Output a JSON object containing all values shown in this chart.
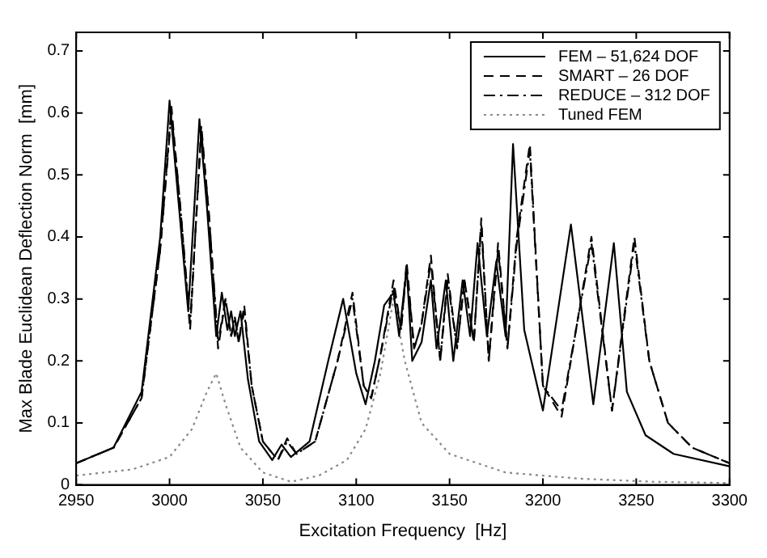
{
  "chart_data": {
    "type": "line",
    "xlabel": "Excitation Frequency  [Hz]",
    "ylabel": "Max Blade Euclidean Deflection Norm  [mm]",
    "xlim": [
      2950,
      3300
    ],
    "xticks": [
      2950,
      3000,
      3050,
      3100,
      3150,
      3200,
      3250,
      3300
    ],
    "ylim": [
      0,
      0.73
    ],
    "yticks": [
      0,
      0.1,
      0.2,
      0.3,
      0.4,
      0.5,
      0.6,
      0.7
    ],
    "grid": false,
    "legend": "top right",
    "marker": "none",
    "series": [
      {
        "name": "FEM – 51,624 DOF",
        "color": "#000000",
        "line_style": "solid",
        "x": [
          2950,
          2970,
          2985,
          2995,
          3000,
          3005,
          3010,
          3016,
          3020,
          3025,
          3028,
          3031,
          3033,
          3035,
          3038,
          3042,
          3048,
          3055,
          3060,
          3065,
          3075,
          3085,
          3093,
          3100,
          3105,
          3110,
          3115,
          3120,
          3123,
          3127,
          3130,
          3135,
          3140,
          3143,
          3148,
          3152,
          3157,
          3161,
          3165,
          3170,
          3175,
          3180,
          3184,
          3190,
          3200,
          3215,
          3227,
          3238,
          3245,
          3255,
          3270,
          3300
        ],
        "values": [
          0.035,
          0.06,
          0.15,
          0.4,
          0.62,
          0.45,
          0.28,
          0.59,
          0.45,
          0.24,
          0.31,
          0.25,
          0.28,
          0.24,
          0.28,
          0.17,
          0.07,
          0.04,
          0.065,
          0.045,
          0.07,
          0.2,
          0.3,
          0.18,
          0.13,
          0.2,
          0.29,
          0.31,
          0.24,
          0.35,
          0.2,
          0.23,
          0.33,
          0.22,
          0.33,
          0.2,
          0.33,
          0.24,
          0.39,
          0.24,
          0.36,
          0.24,
          0.55,
          0.25,
          0.12,
          0.42,
          0.13,
          0.39,
          0.15,
          0.08,
          0.05,
          0.03
        ]
      },
      {
        "name": "SMART – 26 DOF",
        "color": "#000000",
        "line_style": "dashed",
        "x": [
          2950,
          2970,
          2985,
          2995,
          3001,
          3006,
          3011,
          3017,
          3021,
          3026,
          3030,
          3033,
          3035,
          3037,
          3040,
          3044,
          3050,
          3058,
          3063,
          3068,
          3078,
          3090,
          3098,
          3104,
          3108,
          3113,
          3120,
          3124,
          3127,
          3131,
          3135,
          3140,
          3145,
          3149,
          3154,
          3158,
          3163,
          3167,
          3171,
          3176,
          3181,
          3186,
          3193,
          3200,
          3210,
          3226,
          3237,
          3249,
          3257,
          3267,
          3280,
          3300
        ],
        "values": [
          0.035,
          0.06,
          0.14,
          0.38,
          0.61,
          0.44,
          0.25,
          0.58,
          0.44,
          0.22,
          0.3,
          0.24,
          0.27,
          0.23,
          0.29,
          0.16,
          0.07,
          0.04,
          0.075,
          0.05,
          0.07,
          0.2,
          0.31,
          0.16,
          0.14,
          0.21,
          0.33,
          0.25,
          0.36,
          0.22,
          0.26,
          0.37,
          0.2,
          0.34,
          0.22,
          0.33,
          0.23,
          0.43,
          0.2,
          0.39,
          0.22,
          0.4,
          0.55,
          0.16,
          0.11,
          0.4,
          0.12,
          0.4,
          0.2,
          0.1,
          0.06,
          0.035
        ]
      },
      {
        "name": "REDUCE – 312 DOF",
        "color": "#000000",
        "line_style": "dashdot",
        "x": [
          2950,
          2970,
          2985,
          2995,
          3001,
          3006,
          3011,
          3017,
          3021,
          3026,
          3030,
          3033,
          3035,
          3037,
          3040,
          3044,
          3050,
          3058,
          3063,
          3068,
          3078,
          3090,
          3098,
          3104,
          3108,
          3113,
          3120,
          3124,
          3127,
          3131,
          3135,
          3140,
          3145,
          3149,
          3154,
          3158,
          3163,
          3167,
          3171,
          3176,
          3181,
          3186,
          3193,
          3200,
          3210,
          3226,
          3237,
          3249,
          3257,
          3267,
          3280,
          3300
        ],
        "values": [
          0.035,
          0.06,
          0.14,
          0.38,
          0.6,
          0.44,
          0.26,
          0.57,
          0.44,
          0.23,
          0.3,
          0.24,
          0.27,
          0.23,
          0.28,
          0.16,
          0.07,
          0.04,
          0.07,
          0.05,
          0.07,
          0.2,
          0.3,
          0.16,
          0.14,
          0.21,
          0.32,
          0.25,
          0.35,
          0.22,
          0.26,
          0.36,
          0.2,
          0.33,
          0.22,
          0.33,
          0.23,
          0.42,
          0.2,
          0.38,
          0.22,
          0.39,
          0.54,
          0.16,
          0.12,
          0.39,
          0.12,
          0.39,
          0.2,
          0.1,
          0.06,
          0.035
        ]
      },
      {
        "name": "Tuned FEM",
        "color": "#888888",
        "line_style": "dotted",
        "x": [
          2950,
          2980,
          3000,
          3012,
          3020,
          3025,
          3030,
          3038,
          3050,
          3065,
          3080,
          3095,
          3105,
          3113,
          3120,
          3126,
          3135,
          3150,
          3180,
          3220,
          3260,
          3300
        ],
        "values": [
          0.015,
          0.025,
          0.045,
          0.09,
          0.15,
          0.18,
          0.13,
          0.06,
          0.02,
          0.005,
          0.015,
          0.04,
          0.09,
          0.18,
          0.3,
          0.2,
          0.1,
          0.05,
          0.02,
          0.01,
          0.005,
          0.003
        ]
      }
    ]
  }
}
